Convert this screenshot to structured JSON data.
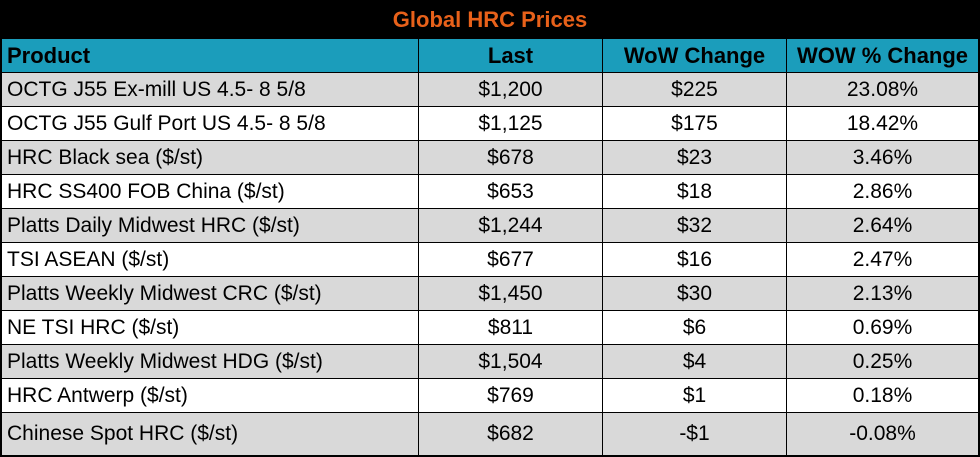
{
  "title": "Global HRC Prices",
  "columns": [
    "Product",
    "Last",
    "WoW Change",
    "WOW % Change"
  ],
  "rows": [
    {
      "product": "OCTG J55 Ex-mill US 4.5- 8 5/8",
      "last": "$1,200",
      "wow": "$225",
      "pct": "23.08%"
    },
    {
      "product": "OCTG J55 Gulf Port US 4.5- 8 5/8",
      "last": "$1,125",
      "wow": "$175",
      "pct": "18.42%"
    },
    {
      "product": "HRC Black sea ($/st)",
      "last": "$678",
      "wow": "$23",
      "pct": "3.46%"
    },
    {
      "product": "HRC SS400 FOB China ($/st)",
      "last": "$653",
      "wow": "$18",
      "pct": "2.86%"
    },
    {
      "product": "Platts Daily Midwest HRC ($/st)",
      "last": "$1,244",
      "wow": "$32",
      "pct": "2.64%"
    },
    {
      "product": "TSI ASEAN ($/st)",
      "last": "$677",
      "wow": "$16",
      "pct": "2.47%"
    },
    {
      "product": "Platts Weekly Midwest CRC ($/st)",
      "last": "$1,450",
      "wow": "$30",
      "pct": "2.13%"
    },
    {
      "product": "NE TSI HRC ($/st)",
      "last": "$811",
      "wow": "$6",
      "pct": "0.69%"
    },
    {
      "product": "Platts Weekly Midwest HDG ($/st)",
      "last": "$1,504",
      "wow": "$4",
      "pct": "0.25%"
    },
    {
      "product": "HRC Antwerp ($/st)",
      "last": "$769",
      "wow": "$1",
      "pct": "0.18%"
    },
    {
      "product": "Chinese Spot HRC ($/st)",
      "last": "$682",
      "wow": "-$1",
      "pct": "-0.08%"
    }
  ],
  "colors": {
    "title_bg": "#000000",
    "title_text": "#e8611a",
    "header_bg": "#1b9dbb",
    "row_shade": "#d9d9d9",
    "row_plain": "#ffffff"
  }
}
